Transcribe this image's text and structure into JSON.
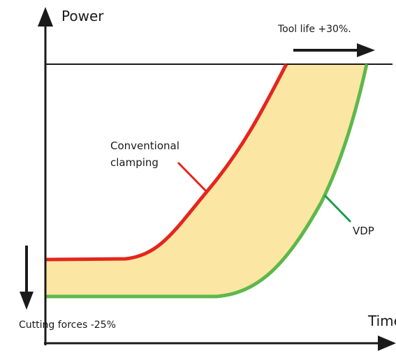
{
  "axes": {
    "y_label": "Power",
    "x_label": "Time"
  },
  "annotations": {
    "tool_life": "Tool life +30%.",
    "cutting_forces": "Cutting forces -25%"
  },
  "curves": {
    "conventional": [
      "Conventional",
      "clamping"
    ],
    "vdp": "VDP"
  }
}
